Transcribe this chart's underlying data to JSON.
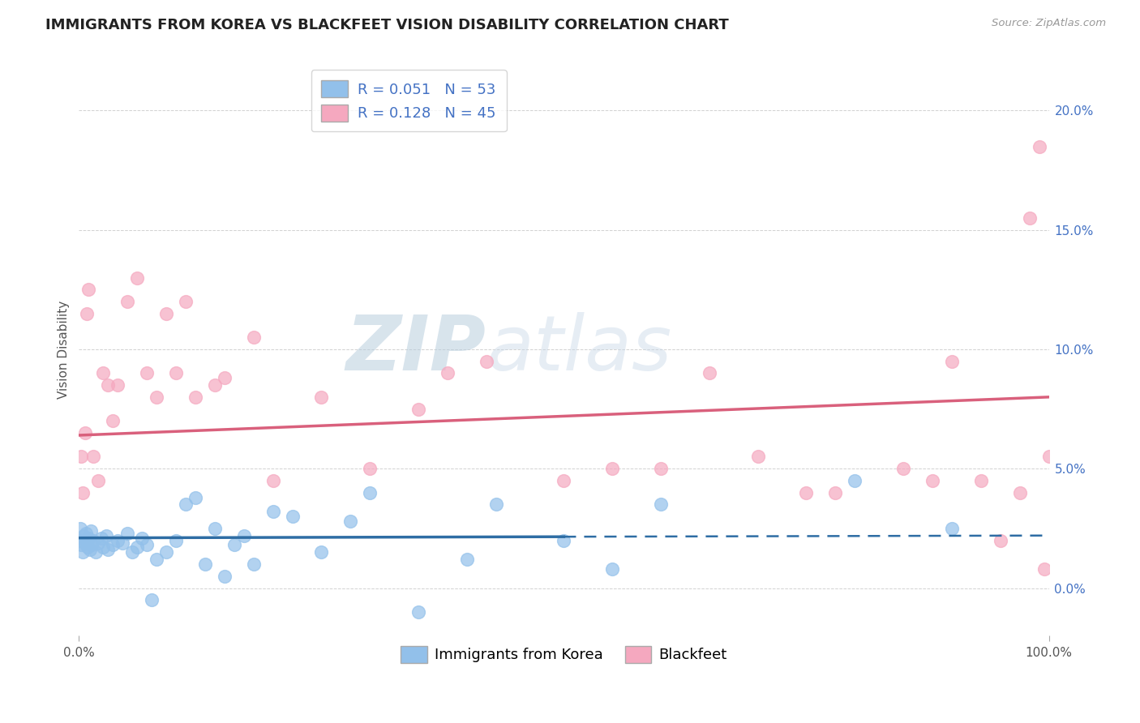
{
  "title": "IMMIGRANTS FROM KOREA VS BLACKFEET VISION DISABILITY CORRELATION CHART",
  "source": "Source: ZipAtlas.com",
  "ylabel": "Vision Disability",
  "xlim": [
    0,
    100
  ],
  "ylim": [
    -2.0,
    22.0
  ],
  "yticks": [
    0,
    5,
    10,
    15,
    20
  ],
  "ytick_labels": [
    "0.0%",
    "5.0%",
    "10.0%",
    "15.0%",
    "20.0%"
  ],
  "xtick_labels": [
    "0.0%",
    "100.0%"
  ],
  "korea_R": 0.051,
  "korea_N": 53,
  "blackfeet_R": 0.128,
  "blackfeet_N": 45,
  "korea_color": "#92C0EA",
  "blackfeet_color": "#F5A8BF",
  "korea_line_color": "#2E6DA4",
  "blackfeet_line_color": "#D9607C",
  "background_color": "#FFFFFF",
  "grid_color": "#CCCCCC",
  "title_fontsize": 13,
  "axis_label_fontsize": 11,
  "tick_fontsize": 11,
  "legend_fontsize": 13,
  "korea_line_y0": 2.1,
  "korea_line_y100": 2.2,
  "korea_line_solid_end": 50,
  "blackfeet_line_y0": 6.4,
  "blackfeet_line_y100": 8.0,
  "korea_x": [
    0.1,
    0.2,
    0.3,
    0.4,
    0.5,
    0.6,
    0.7,
    0.8,
    0.9,
    1.0,
    1.1,
    1.2,
    1.3,
    1.5,
    1.7,
    2.0,
    2.3,
    2.5,
    2.8,
    3.0,
    3.5,
    4.0,
    4.5,
    5.0,
    5.5,
    6.0,
    6.5,
    7.0,
    7.5,
    8.0,
    9.0,
    10.0,
    11.0,
    12.0,
    13.0,
    14.0,
    15.0,
    16.0,
    17.0,
    18.0,
    20.0,
    22.0,
    25.0,
    28.0,
    30.0,
    35.0,
    40.0,
    43.0,
    50.0,
    55.0,
    60.0,
    80.0,
    90.0
  ],
  "korea_y": [
    2.5,
    1.8,
    2.0,
    1.5,
    2.2,
    1.9,
    2.3,
    2.0,
    1.7,
    2.1,
    1.6,
    2.4,
    1.8,
    2.0,
    1.5,
    1.9,
    2.1,
    1.7,
    2.2,
    1.6,
    1.8,
    2.0,
    1.9,
    2.3,
    1.5,
    1.7,
    2.1,
    1.8,
    -0.5,
    1.2,
    1.5,
    2.0,
    3.5,
    3.8,
    1.0,
    2.5,
    0.5,
    1.8,
    2.2,
    1.0,
    3.2,
    3.0,
    1.5,
    2.8,
    4.0,
    -1.0,
    1.2,
    3.5,
    2.0,
    0.8,
    3.5,
    4.5,
    2.5
  ],
  "blackfeet_x": [
    0.2,
    0.4,
    0.6,
    0.8,
    1.0,
    1.5,
    2.0,
    2.5,
    3.0,
    3.5,
    4.0,
    5.0,
    6.0,
    7.0,
    8.0,
    9.0,
    10.0,
    11.0,
    12.0,
    14.0,
    15.0,
    18.0,
    20.0,
    25.0,
    30.0,
    35.0,
    38.0,
    42.0,
    50.0,
    55.0,
    60.0,
    65.0,
    70.0,
    75.0,
    78.0,
    85.0,
    88.0,
    90.0,
    93.0,
    95.0,
    97.0,
    98.0,
    99.0,
    99.5,
    100.0
  ],
  "blackfeet_y": [
    5.5,
    4.0,
    6.5,
    11.5,
    12.5,
    5.5,
    4.5,
    9.0,
    8.5,
    7.0,
    8.5,
    12.0,
    13.0,
    9.0,
    8.0,
    11.5,
    9.0,
    12.0,
    8.0,
    8.5,
    8.8,
    10.5,
    4.5,
    8.0,
    5.0,
    7.5,
    9.0,
    9.5,
    4.5,
    5.0,
    5.0,
    9.0,
    5.5,
    4.0,
    4.0,
    5.0,
    4.5,
    9.5,
    4.5,
    2.0,
    4.0,
    15.5,
    18.5,
    0.8,
    5.5
  ]
}
